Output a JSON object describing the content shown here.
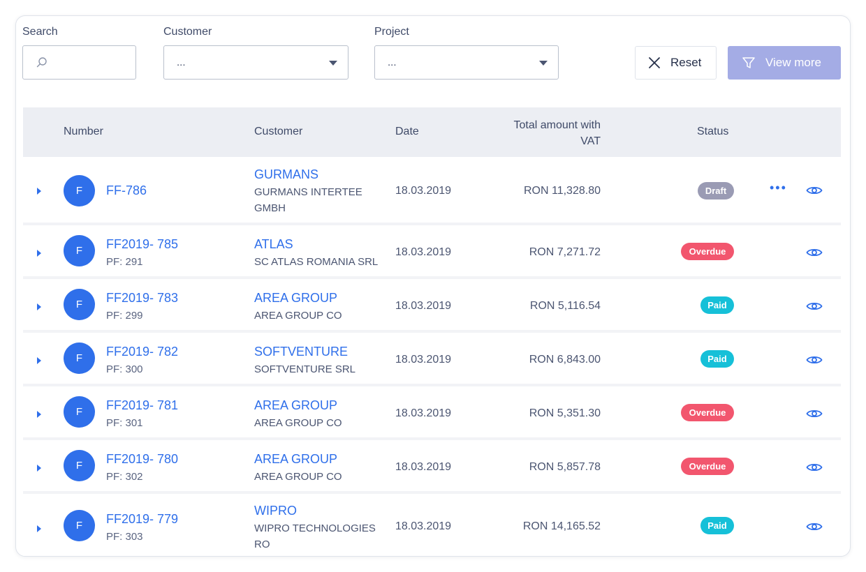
{
  "filters": {
    "search_label": "Search",
    "search_value": "",
    "customer_label": "Customer",
    "customer_value": "...",
    "project_label": "Project",
    "project_value": "...",
    "reset_label": "Reset",
    "view_more_label": "View more"
  },
  "table": {
    "headers": {
      "number": "Number",
      "customer": "Customer",
      "date": "Date",
      "total_line1": "Total amount with",
      "total_line2": "VAT",
      "status": "Status"
    },
    "rows": [
      {
        "avatar": "F",
        "number": "FF-786",
        "pf": "",
        "customer": "GURMANS",
        "customer_full": "GURMANS INTERTEE GMBH",
        "date": "18.03.2019",
        "amount": "RON 11,328.80",
        "status": "Draft",
        "status_color": "#9a9bb4",
        "has_more": true
      },
      {
        "avatar": "F",
        "number": "FF2019- 785",
        "pf": "PF: 291",
        "customer": "ATLAS",
        "customer_full": "SC ATLAS ROMANIA SRL",
        "date": "18.03.2019",
        "amount": "RON 7,271.72",
        "status": "Overdue",
        "status_color": "#f2566e",
        "has_more": false
      },
      {
        "avatar": "F",
        "number": "FF2019- 783",
        "pf": "PF: 299",
        "customer": "AREA GROUP",
        "customer_full": "AREA GROUP CO",
        "date": "18.03.2019",
        "amount": "RON 5,116.54",
        "status": "Paid",
        "status_color": "#16c0d8",
        "has_more": false
      },
      {
        "avatar": "F",
        "number": "FF2019- 782",
        "pf": "PF: 300",
        "customer": "SOFTVENTURE",
        "customer_full": "SOFTVENTURE SRL",
        "date": "18.03.2019",
        "amount": "RON 6,843.00",
        "status": "Paid",
        "status_color": "#16c0d8",
        "has_more": false
      },
      {
        "avatar": "F",
        "number": "FF2019- 781",
        "pf": "PF: 301",
        "customer": "AREA GROUP",
        "customer_full": "AREA GROUP CO",
        "date": "18.03.2019",
        "amount": "RON 5,351.30",
        "status": "Overdue",
        "status_color": "#f2566e",
        "has_more": false
      },
      {
        "avatar": "F",
        "number": "FF2019- 780",
        "pf": "PF: 302",
        "customer": "AREA GROUP",
        "customer_full": "AREA GROUP CO",
        "date": "18.03.2019",
        "amount": "RON 5,857.78",
        "status": "Overdue",
        "status_color": "#f2566e",
        "has_more": false
      },
      {
        "avatar": "F",
        "number": "FF2019- 779",
        "pf": "PF: 303",
        "customer": "WIPRO",
        "customer_full": "WIPRO TECHNOLOGIES RO",
        "date": "18.03.2019",
        "amount": "RON 14,165.52",
        "status": "Paid",
        "status_color": "#16c0d8",
        "has_more": false
      }
    ],
    "more_icon": "more-dots-icon",
    "view_icon": "eye-icon",
    "expand_icon": "caret-right-icon"
  },
  "colors": {
    "accent": "#2f6fea",
    "button_disabled": "#a4ace5",
    "header_bg": "#eceef3"
  }
}
